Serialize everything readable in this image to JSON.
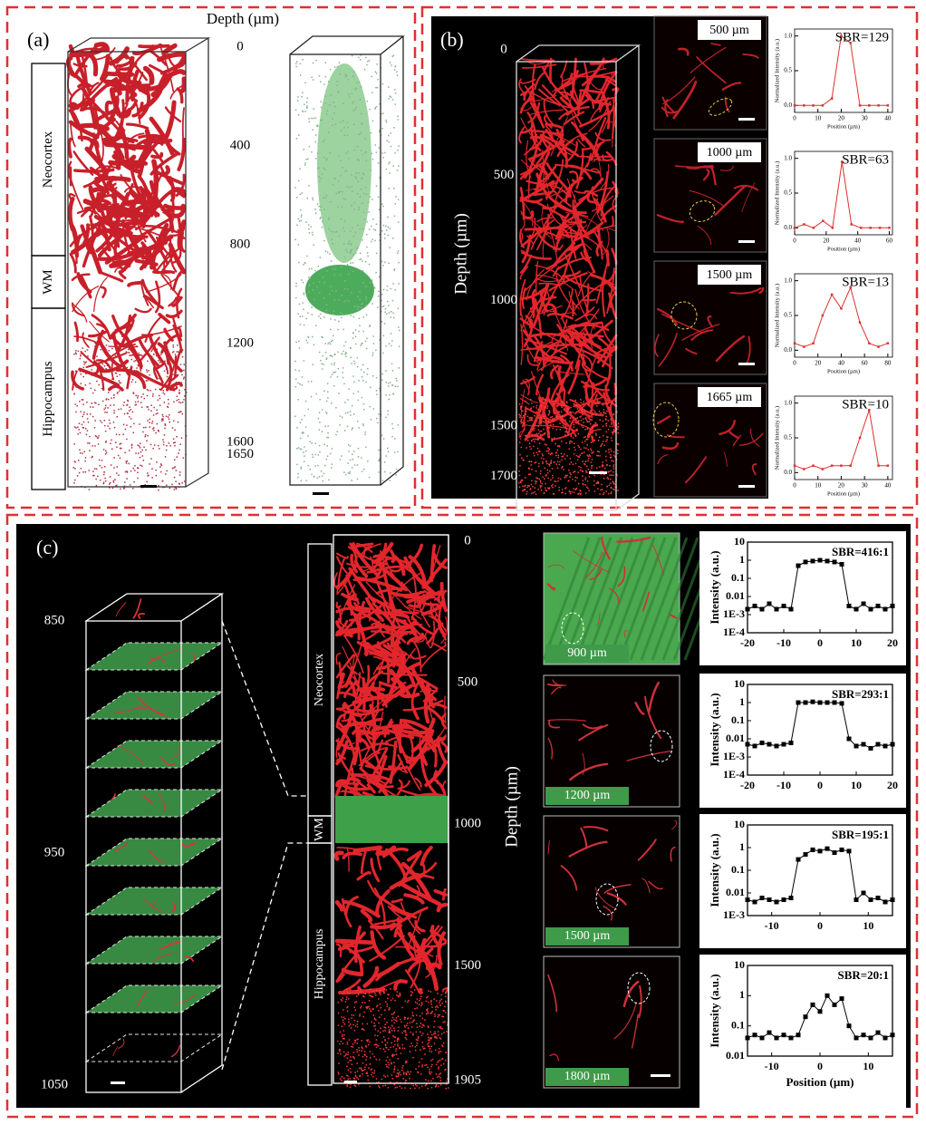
{
  "panel_a": {
    "label": "(a)",
    "depth_title": "Depth (µm)",
    "depth_ticks": [
      0,
      400,
      800,
      1200,
      1600,
      1650
    ],
    "regions": [
      "Neocortex",
      "WM",
      "Hippocampus"
    ]
  },
  "panel_b": {
    "label": "(b)",
    "depth_title": "Depth (µm)",
    "depth_ticks": [
      0,
      500,
      1000,
      1500,
      1700
    ],
    "insets": [
      "500 µm",
      "1000 µm",
      "1500 µm",
      "1665 µm"
    ],
    "plots": [
      {
        "annotation": "SBR=129",
        "x_label": "Position (µm)",
        "y_label": "Normalized Intensity (a.u.)",
        "color": "#e03030",
        "xlim": [
          0,
          42
        ],
        "ylim": [
          -0.1,
          1.1
        ],
        "xticks": [
          0,
          10,
          20,
          30,
          40
        ],
        "yticks": [
          {
            "value": 0,
            "label": "0.0"
          },
          0.5,
          {
            "value": 1,
            "label": "1.0"
          }
        ],
        "x": [
          0,
          4,
          8,
          12,
          16,
          20,
          24,
          28,
          32,
          36,
          40
        ],
        "values": [
          0,
          0,
          0,
          0,
          0.1,
          1.0,
          0.9,
          0,
          0,
          0,
          0
        ]
      },
      {
        "annotation": "SBR=63",
        "x_label": "Position (µm)",
        "y_label": "Normalized Intensity (a.u.)",
        "color": "#e03030",
        "xlim": [
          0,
          62
        ],
        "ylim": [
          -0.1,
          1.1
        ],
        "xticks": [
          0,
          20,
          40,
          60
        ],
        "yticks": [
          {
            "value": 0,
            "label": "0.0"
          },
          0.5,
          {
            "value": 1,
            "label": "1.0"
          }
        ],
        "x": [
          0,
          6,
          12,
          18,
          24,
          30,
          36,
          42,
          48,
          54,
          60
        ],
        "values": [
          0,
          0.05,
          0,
          0.1,
          0,
          0.95,
          0.05,
          0,
          0,
          0,
          0
        ]
      },
      {
        "annotation": "SBR=13",
        "x_label": "Position (µm)",
        "y_label": "Normalized Intensity (a.u.)",
        "color": "#e03030",
        "xlim": [
          0,
          84
        ],
        "ylim": [
          -0.1,
          1.1
        ],
        "xticks": [
          0,
          20,
          40,
          60,
          80
        ],
        "yticks": [
          {
            "value": 0,
            "label": "0.0"
          },
          0.5,
          {
            "value": 1,
            "label": "1.0"
          }
        ],
        "x": [
          0,
          8,
          16,
          24,
          32,
          40,
          48,
          56,
          64,
          72,
          80
        ],
        "values": [
          0.1,
          0.05,
          0.1,
          0.5,
          0.8,
          0.6,
          0.9,
          0.4,
          0.1,
          0.05,
          0.1
        ]
      },
      {
        "annotation": "SBR=10",
        "x_label": "Position (µm)",
        "y_label": "Normalized Intensity (a.u.)",
        "color": "#e03030",
        "xlim": [
          0,
          42
        ],
        "ylim": [
          -0.1,
          1.1
        ],
        "xticks": [
          0,
          10,
          20,
          30,
          40
        ],
        "yticks": [
          {
            "value": 0,
            "label": "0.0"
          },
          0.5,
          {
            "value": 1,
            "label": "1.0"
          }
        ],
        "x": [
          0,
          4,
          8,
          12,
          16,
          20,
          24,
          28,
          32,
          36,
          40
        ],
        "values": [
          0.1,
          0.05,
          0.1,
          0.05,
          0.1,
          0.1,
          0.1,
          0.5,
          0.9,
          0.1,
          0.1
        ]
      }
    ]
  },
  "panel_c": {
    "label": "(c)",
    "stack_ticks": [
      850,
      950,
      1050
    ],
    "depth_title": "Depth (µm)",
    "depth_ticks": [
      0,
      500,
      1000,
      1500,
      1905
    ],
    "regions": [
      "Neocortex",
      "WM",
      "Hippocampus"
    ],
    "insets": [
      "900 µm",
      "1200 µm",
      "1500 µm",
      "1800 µm"
    ],
    "plots": [
      {
        "annotation": "SBR=416:1",
        "y_label": "Intensity (a.u.)",
        "color": "#000000",
        "log_y": true,
        "xlim": [
          -20,
          20
        ],
        "ylim": [
          0.0001,
          10
        ],
        "xticks": [
          -20,
          -10,
          0,
          10,
          20
        ],
        "yticks": [
          10,
          1,
          0.1,
          0.01,
          {
            "value": 0.001,
            "label": "1E-3"
          },
          {
            "value": 0.0001,
            "label": "1E-4"
          }
        ],
        "x": [
          -20,
          -18,
          -16,
          -14,
          -12,
          -10,
          -8,
          -6,
          -4,
          -2,
          0,
          2,
          4,
          6,
          8,
          10,
          12,
          14,
          16,
          18,
          20
        ],
        "values": [
          0.002,
          0.003,
          0.002,
          0.004,
          0.002,
          0.003,
          0.002,
          0.5,
          0.8,
          0.9,
          1,
          0.9,
          0.8,
          0.6,
          0.003,
          0.002,
          0.004,
          0.002,
          0.003,
          0.002,
          0.003
        ]
      },
      {
        "annotation": "SBR=293:1",
        "y_label": "Intensity (a.u.)",
        "color": "#000000",
        "log_y": true,
        "xlim": [
          -20,
          20
        ],
        "ylim": [
          0.0001,
          10
        ],
        "xticks": [
          -20,
          -10,
          0,
          10,
          20
        ],
        "yticks": [
          10,
          1,
          0.1,
          0.01,
          {
            "value": 0.001,
            "label": "1E-3"
          },
          {
            "value": 0.0001,
            "label": "1E-4"
          }
        ],
        "x": [
          -20,
          -18,
          -16,
          -14,
          -12,
          -10,
          -8,
          -6,
          -4,
          -2,
          0,
          2,
          4,
          6,
          8,
          10,
          12,
          14,
          16,
          18,
          20
        ],
        "values": [
          0.005,
          0.004,
          0.006,
          0.005,
          0.004,
          0.005,
          0.006,
          1,
          1,
          1.1,
          1,
          1,
          1,
          0.9,
          0.01,
          0.004,
          0.005,
          0.003,
          0.005,
          0.004,
          0.005
        ]
      },
      {
        "annotation": "SBR=195:1",
        "y_label": "Intensity (a.u.)",
        "color": "#000000",
        "log_y": true,
        "xlim": [
          -15,
          15
        ],
        "ylim": [
          0.001,
          10
        ],
        "xticks": [
          -10,
          0,
          10
        ],
        "yticks": [
          10,
          1,
          0.1,
          0.01,
          {
            "value": 0.001,
            "label": "1E-3"
          }
        ],
        "x": [
          -15,
          -13.5,
          -12,
          -10.5,
          -9,
          -7.5,
          -6,
          -4.5,
          -3,
          -1.5,
          0,
          1.5,
          3,
          4.5,
          6,
          7.5,
          9,
          10.5,
          12,
          13.5,
          15
        ],
        "values": [
          0.005,
          0.004,
          0.006,
          0.005,
          0.004,
          0.005,
          0.006,
          0.3,
          0.5,
          0.8,
          0.7,
          0.9,
          0.6,
          0.8,
          0.7,
          0.005,
          0.01,
          0.005,
          0.006,
          0.004,
          0.005
        ]
      },
      {
        "annotation": "SBR=20:1",
        "y_label": "Intensity (a.u.)",
        "x_label": "Position (µm)",
        "color": "#000000",
        "log_y": true,
        "xlim": [
          -15,
          15
        ],
        "ylim": [
          0.01,
          10
        ],
        "xticks": [
          -10,
          0,
          10
        ],
        "yticks": [
          10,
          1,
          0.1,
          0.01
        ],
        "x": [
          -15,
          -13.5,
          -12,
          -10.5,
          -9,
          -7.5,
          -6,
          -4.5,
          -3,
          -1.5,
          0,
          1.5,
          3,
          4.5,
          6,
          7.5,
          9,
          10.5,
          12,
          13.5,
          15
        ],
        "values": [
          0.04,
          0.05,
          0.04,
          0.06,
          0.04,
          0.05,
          0.04,
          0.05,
          0.2,
          0.5,
          0.3,
          1,
          0.5,
          0.8,
          0.1,
          0.04,
          0.05,
          0.04,
          0.06,
          0.04,
          0.05
        ]
      }
    ]
  }
}
